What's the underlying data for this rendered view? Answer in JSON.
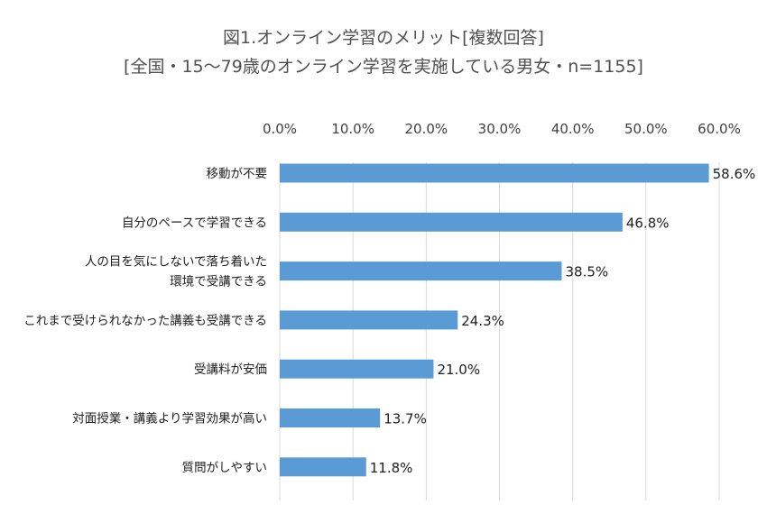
{
  "title": "図1.オンライン学習のメリット[複数回答]",
  "subtitle": "[全国・15〜79歳のオンライン学習を実施している男女・n=1155]",
  "chart_data": {
    "type": "bar",
    "orientation": "horizontal",
    "title": "図1.オンライン学習のメリット[複数回答]",
    "subtitle": "[全国・15〜79歳のオンライン学習を実施している男女・n=1155]",
    "xlim": [
      0,
      60
    ],
    "ticks": [
      0,
      10,
      20,
      30,
      40,
      50,
      60
    ],
    "tick_labels": [
      "0.0%",
      "10.0%",
      "20.0%",
      "30.0%",
      "40.0%",
      "50.0%",
      "60.0%"
    ],
    "axis_position": "top",
    "gridlines": true,
    "bar_color": "#5B9BD5",
    "categories": [
      [
        "移動が不要"
      ],
      [
        "自分のペースで学習できる"
      ],
      [
        "人の目を気にしないで落ち着いた",
        "環境で受講できる"
      ],
      [
        "これまで受けられなかった講義も受講できる"
      ],
      [
        "受講料が安価"
      ],
      [
        "対面授業・講義より学習効果が高い"
      ],
      [
        "質問がしやすい"
      ]
    ],
    "values": [
      58.6,
      46.8,
      38.5,
      24.3,
      21.0,
      13.7,
      11.8
    ],
    "value_labels": [
      "58.6%",
      "46.8%",
      "38.5%",
      "24.3%",
      "21.0%",
      "13.7%",
      "11.8%"
    ]
  }
}
